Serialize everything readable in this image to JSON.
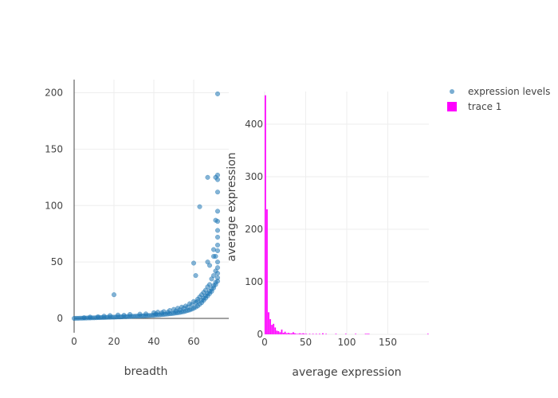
{
  "chart_data": {
    "type": "scatter",
    "legend": {
      "position": "top-right",
      "entries": [
        {
          "name": "expression levels",
          "symbol": "marker",
          "color": "#1f77b4"
        },
        {
          "name": "trace 1",
          "symbol": "square",
          "color": "#ff00ff"
        }
      ]
    },
    "scatter": {
      "name": "expression levels",
      "color": "#1f77b4",
      "xlabel": "breadth",
      "ylabel": "average expression",
      "xlim": [
        -5,
        78
      ],
      "ylim": [
        -12,
        212
      ],
      "xticks": [
        0,
        20,
        40,
        60
      ],
      "yticks": [
        0,
        50,
        100,
        150,
        200
      ],
      "grid": true,
      "points": [
        [
          0,
          0
        ],
        [
          1,
          0.1
        ],
        [
          2,
          0.1
        ],
        [
          3,
          0.2
        ],
        [
          4,
          0.2
        ],
        [
          5,
          0.3
        ],
        [
          6,
          0.3
        ],
        [
          7,
          0.4
        ],
        [
          8,
          0.4
        ],
        [
          9,
          0.5
        ],
        [
          10,
          0.5
        ],
        [
          11,
          0.6
        ],
        [
          12,
          0.7
        ],
        [
          13,
          0.7
        ],
        [
          14,
          0.8
        ],
        [
          15,
          0.8
        ],
        [
          16,
          0.9
        ],
        [
          17,
          1
        ],
        [
          18,
          1
        ],
        [
          19,
          1.1
        ],
        [
          20,
          1.1
        ],
        [
          21,
          1.2
        ],
        [
          22,
          1.3
        ],
        [
          23,
          1.3
        ],
        [
          24,
          1.4
        ],
        [
          25,
          1.5
        ],
        [
          26,
          1.5
        ],
        [
          27,
          1.6
        ],
        [
          28,
          1.7
        ],
        [
          29,
          1.8
        ],
        [
          30,
          1.9
        ],
        [
          31,
          2
        ],
        [
          32,
          2
        ],
        [
          33,
          2.1
        ],
        [
          34,
          2.2
        ],
        [
          35,
          2.3
        ],
        [
          36,
          2.4
        ],
        [
          37,
          2.5
        ],
        [
          38,
          2.6
        ],
        [
          39,
          2.7
        ],
        [
          40,
          2.8
        ],
        [
          41,
          3
        ],
        [
          42,
          3.1
        ],
        [
          43,
          3.2
        ],
        [
          44,
          3.4
        ],
        [
          45,
          3.5
        ],
        [
          46,
          3.7
        ],
        [
          47,
          3.9
        ],
        [
          48,
          4.1
        ],
        [
          49,
          4.3
        ],
        [
          50,
          4.5
        ],
        [
          51,
          4.8
        ],
        [
          52,
          5
        ],
        [
          53,
          5.3
        ],
        [
          54,
          5.7
        ],
        [
          55,
          6
        ],
        [
          56,
          6.5
        ],
        [
          57,
          7
        ],
        [
          58,
          7.5
        ],
        [
          59,
          8.2
        ],
        [
          60,
          9
        ],
        [
          61,
          10
        ],
        [
          62,
          11
        ],
        [
          63,
          12.5
        ],
        [
          64,
          14
        ],
        [
          65,
          16
        ],
        [
          66,
          18
        ],
        [
          67,
          20
        ],
        [
          68,
          22
        ],
        [
          69,
          24
        ],
        [
          70,
          27
        ],
        [
          71,
          30
        ],
        [
          72,
          33
        ],
        [
          5,
          0.6
        ],
        [
          8,
          1.2
        ],
        [
          12,
          1.5
        ],
        [
          15,
          2
        ],
        [
          18,
          2.5
        ],
        [
          22,
          3
        ],
        [
          25,
          2.8
        ],
        [
          28,
          3.5
        ],
        [
          33,
          3.8
        ],
        [
          36,
          4
        ],
        [
          40,
          5
        ],
        [
          42,
          5.5
        ],
        [
          45,
          6
        ],
        [
          48,
          7
        ],
        [
          50,
          8
        ],
        [
          52,
          9
        ],
        [
          54,
          10
        ],
        [
          56,
          11
        ],
        [
          58,
          13
        ],
        [
          60,
          15
        ],
        [
          62,
          17
        ],
        [
          63,
          19
        ],
        [
          64,
          21
        ],
        [
          65,
          23
        ],
        [
          66,
          25
        ],
        [
          67,
          28
        ],
        [
          68,
          30
        ],
        [
          69,
          35
        ],
        [
          70,
          38
        ],
        [
          71,
          42
        ],
        [
          72,
          45
        ],
        [
          72,
          50
        ],
        [
          71,
          55
        ],
        [
          72,
          60
        ],
        [
          72,
          65
        ],
        [
          72,
          72
        ],
        [
          72,
          78
        ],
        [
          72,
          86
        ],
        [
          71,
          87
        ],
        [
          72,
          95
        ],
        [
          20,
          21
        ],
        [
          60,
          49
        ],
        [
          61,
          38
        ],
        [
          63,
          99
        ],
        [
          67,
          50
        ],
        [
          68,
          47
        ],
        [
          70,
          55
        ],
        [
          70,
          61
        ],
        [
          72,
          112
        ],
        [
          67,
          125
        ],
        [
          71,
          125
        ],
        [
          72,
          127
        ],
        [
          72,
          123
        ],
        [
          72,
          199
        ],
        [
          41,
          4
        ],
        [
          44,
          5
        ],
        [
          47,
          5.5
        ],
        [
          51,
          6.5
        ],
        [
          53,
          7.5
        ],
        [
          55,
          9
        ],
        [
          57,
          10
        ],
        [
          59,
          12
        ],
        [
          61,
          14
        ],
        [
          62,
          15
        ],
        [
          64,
          16
        ],
        [
          65,
          18
        ],
        [
          66,
          20
        ],
        [
          67,
          22
        ],
        [
          68,
          24
        ],
        [
          69,
          26
        ],
        [
          70,
          29
        ],
        [
          71,
          32
        ],
        [
          72,
          36
        ],
        [
          72,
          40
        ]
      ]
    },
    "histogram": {
      "name": "trace 1",
      "color": "#ff00ff",
      "xlabel": "average expression",
      "ylabel": "",
      "xlim": [
        0,
        200
      ],
      "ylim": [
        0,
        460
      ],
      "xticks": [
        0,
        50,
        100,
        150
      ],
      "yticks": [
        0,
        100,
        200,
        300,
        400
      ],
      "grid": true,
      "bin_width": 2,
      "bins": [
        [
          0,
          455
        ],
        [
          2,
          238
        ],
        [
          4,
          42
        ],
        [
          6,
          29
        ],
        [
          8,
          18
        ],
        [
          10,
          20
        ],
        [
          12,
          13
        ],
        [
          14,
          7
        ],
        [
          16,
          6
        ],
        [
          18,
          4
        ],
        [
          20,
          9
        ],
        [
          22,
          3
        ],
        [
          24,
          5
        ],
        [
          26,
          2
        ],
        [
          28,
          3
        ],
        [
          30,
          2
        ],
        [
          32,
          2
        ],
        [
          34,
          4
        ],
        [
          36,
          2
        ],
        [
          38,
          1
        ],
        [
          40,
          1
        ],
        [
          42,
          2
        ],
        [
          44,
          1
        ],
        [
          46,
          2
        ],
        [
          48,
          1
        ],
        [
          50,
          1
        ],
        [
          54,
          1
        ],
        [
          58,
          1
        ],
        [
          62,
          1
        ],
        [
          66,
          1
        ],
        [
          70,
          2
        ],
        [
          74,
          1
        ],
        [
          86,
          1
        ],
        [
          98,
          1
        ],
        [
          110,
          1
        ],
        [
          122,
          1
        ],
        [
          124,
          1
        ],
        [
          126,
          1
        ],
        [
          198,
          1
        ]
      ]
    }
  }
}
